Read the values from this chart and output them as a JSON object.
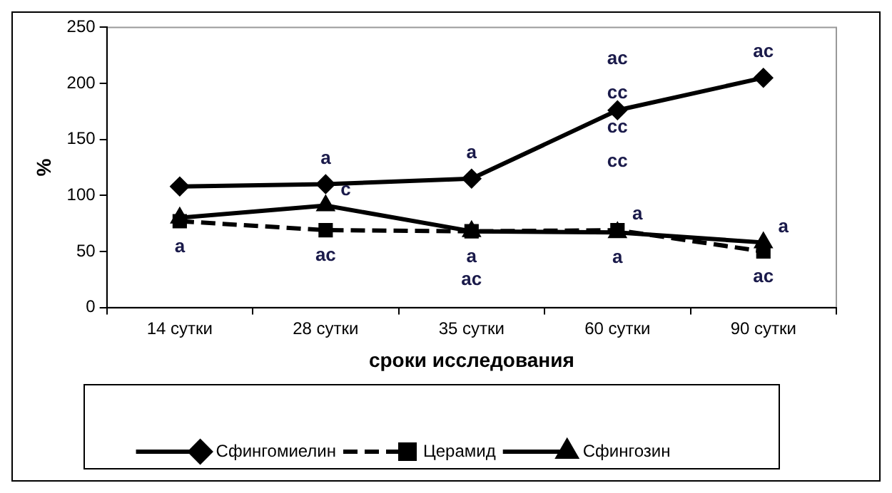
{
  "chart_data": {
    "type": "line",
    "xlabel": "сроки исследования",
    "ylabel": "%",
    "categories": [
      "14 сутки",
      "28 сутки",
      "35 сутки",
      "60 сутки",
      "90 сутки"
    ],
    "series": [
      {
        "name": "Сфингомиелин",
        "color": "#000000",
        "values": [
          108,
          110,
          115,
          176,
          205
        ],
        "marker": "diamond",
        "line_style": "solid"
      },
      {
        "name": "Церамид",
        "color": "#000000",
        "values": [
          77,
          69,
          68,
          69,
          50
        ],
        "marker": "square",
        "line_style": "dashed"
      },
      {
        "name": "Сфингозин",
        "color": "#000000",
        "values": [
          80,
          91,
          68,
          67,
          58
        ],
        "marker": "triangle",
        "line_style": "solid"
      }
    ],
    "ylim": [
      0,
      250
    ],
    "yticks": [
      0,
      50,
      100,
      150,
      200,
      250
    ],
    "grid": false,
    "legend": "bottom",
    "annotations": [
      {
        "text": "a",
        "x": "28 сутки",
        "y": 110
      },
      {
        "text": "a",
        "x": "35 сутки",
        "y": 115
      },
      {
        "text": "ac",
        "x": "60 сутки",
        "y": 176
      },
      {
        "text": "cc",
        "x": "60 сутки",
        "y": 176
      },
      {
        "text": "cc",
        "x": "60 сутки",
        "y": 176
      },
      {
        "text": "cc",
        "x": "60 сутки",
        "y": 176
      },
      {
        "text": "ac",
        "x": "90 сутки",
        "y": 205
      },
      {
        "text": "a",
        "x": "14 сутки",
        "y": 77
      },
      {
        "text": "c",
        "x": "28 сутки",
        "y": 91
      },
      {
        "text": "ac",
        "x": "28 сутки",
        "y": 69
      },
      {
        "text": "a",
        "x": "35 сутки",
        "y": 68
      },
      {
        "text": "ac",
        "x": "35 сутки",
        "y": 68
      },
      {
        "text": "a",
        "x": "60 сутки",
        "y": 69
      },
      {
        "text": "a",
        "x": "60 сутки",
        "y": 67
      },
      {
        "text": "a",
        "x": "90 сутки",
        "y": 58
      },
      {
        "text": "ac",
        "x": "90 сутки",
        "y": 50
      }
    ]
  }
}
